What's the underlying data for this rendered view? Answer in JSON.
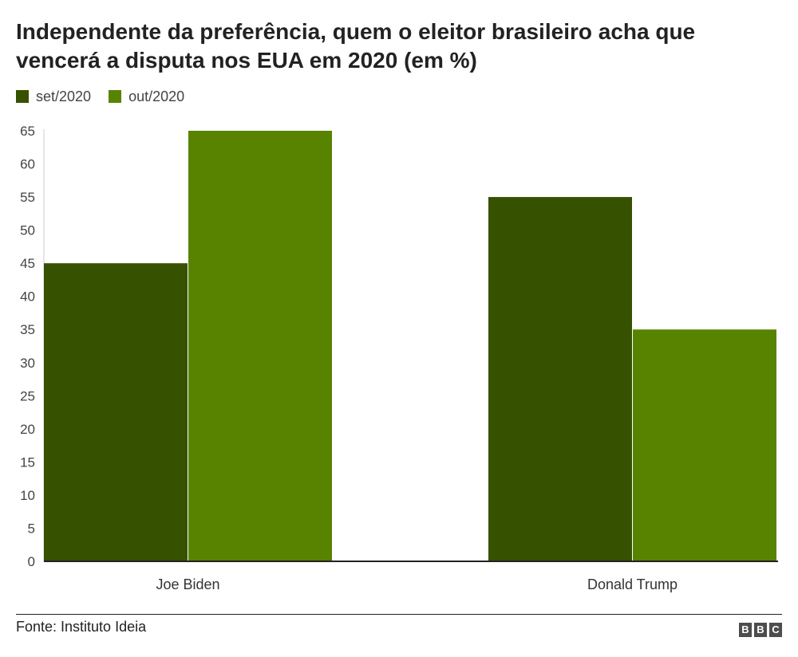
{
  "chart_data": {
    "type": "bar",
    "title": "Independente da preferência, quem o eleitor brasileiro acha que vencerá a disputa nos EUA em 2020 (em %)",
    "categories": [
      "Joe Biden",
      "Donald Trump"
    ],
    "series": [
      {
        "name": "set/2020",
        "values": [
          45,
          55
        ],
        "color": "#365100"
      },
      {
        "name": "out/2020",
        "values": [
          65,
          35
        ],
        "color": "#588300"
      }
    ],
    "ylim": [
      0,
      65
    ],
    "yticks": [
      0,
      5,
      10,
      15,
      20,
      25,
      30,
      35,
      40,
      45,
      50,
      55,
      60,
      65
    ],
    "xlabel": "",
    "ylabel": "",
    "grid": false,
    "legend_position": "top-left"
  },
  "footer": {
    "source": "Fonte: Instituto Ideia",
    "logo_letters": [
      "B",
      "B",
      "C"
    ]
  }
}
